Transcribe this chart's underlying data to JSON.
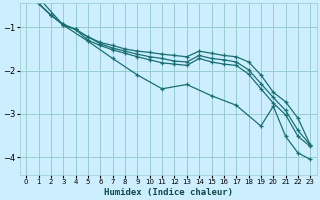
{
  "xlabel": "Humidex (Indice chaleur)",
  "background_color": "#cceeff",
  "grid_color": "#99cccc",
  "line_color": "#1a7070",
  "xlim": [
    -0.5,
    23.5
  ],
  "ylim": [
    -4.4,
    -0.45
  ],
  "yticks": [
    -4,
    -3,
    -2,
    -1
  ],
  "xticks": [
    0,
    1,
    2,
    3,
    4,
    5,
    6,
    7,
    8,
    9,
    10,
    11,
    12,
    13,
    14,
    15,
    16,
    17,
    18,
    19,
    20,
    21,
    22,
    23
  ],
  "series": [
    {
      "x": [
        0,
        1,
        2,
        3,
        4,
        5,
        6,
        7,
        8,
        9,
        10,
        11,
        12,
        13,
        14,
        15,
        16,
        17,
        18,
        19,
        20,
        21,
        22,
        23
      ],
      "y": [
        0.0,
        -0.45,
        -0.72,
        -0.93,
        -1.05,
        -1.22,
        -1.35,
        -1.42,
        -1.5,
        -1.55,
        -1.58,
        -1.62,
        -1.65,
        -1.68,
        -1.55,
        -1.6,
        -1.65,
        -1.68,
        -1.8,
        -2.1,
        -2.5,
        -2.72,
        -3.1,
        -3.72
      ]
    },
    {
      "x": [
        0,
        1,
        2,
        3,
        4,
        5,
        6,
        7,
        8,
        9,
        10,
        11,
        12,
        13,
        14,
        15,
        16,
        17,
        18,
        19,
        20,
        21,
        22,
        23
      ],
      "y": [
        0.0,
        -0.45,
        -0.72,
        -0.93,
        -1.05,
        -1.22,
        -1.38,
        -1.48,
        -1.55,
        -1.62,
        -1.68,
        -1.72,
        -1.78,
        -1.8,
        -1.65,
        -1.72,
        -1.75,
        -1.8,
        -1.98,
        -2.3,
        -2.62,
        -2.92,
        -3.38,
        -3.72
      ]
    },
    {
      "x": [
        0,
        1,
        2,
        3,
        4,
        5,
        6,
        7,
        8,
        9,
        10,
        11,
        12,
        13,
        14,
        15,
        16,
        17,
        18,
        19,
        20,
        21,
        22,
        23
      ],
      "y": [
        0.0,
        -0.45,
        -0.72,
        -0.95,
        -1.05,
        -1.3,
        -1.42,
        -1.52,
        -1.6,
        -1.68,
        -1.75,
        -1.82,
        -1.85,
        -1.88,
        -1.72,
        -1.8,
        -1.85,
        -1.88,
        -2.08,
        -2.42,
        -2.75,
        -3.02,
        -3.52,
        -3.75
      ]
    },
    {
      "x": [
        0,
        3,
        5,
        7,
        9,
        11,
        13,
        15,
        17,
        19,
        20,
        21,
        22,
        23
      ],
      "y": [
        0.0,
        -0.95,
        -1.32,
        -1.72,
        -2.1,
        -2.42,
        -2.32,
        -2.58,
        -2.8,
        -3.28,
        -2.82,
        -3.52,
        -3.9,
        -4.05
      ]
    }
  ]
}
